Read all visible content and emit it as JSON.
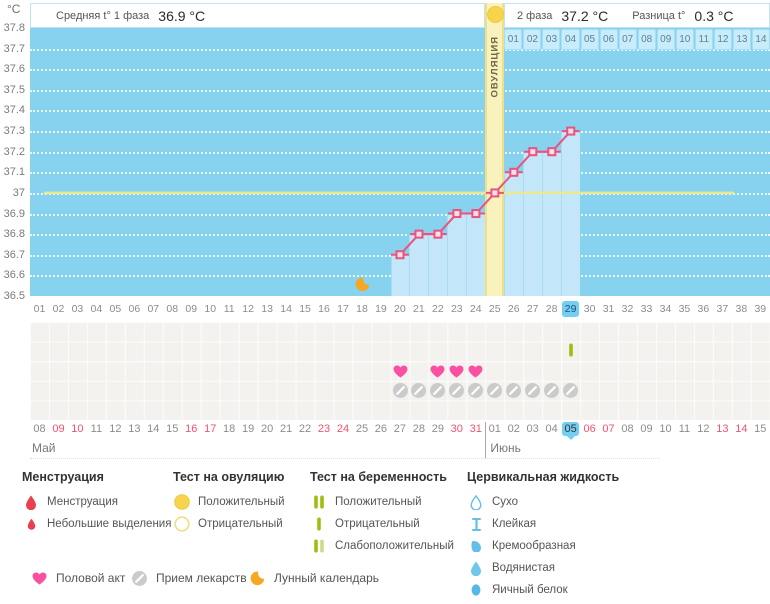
{
  "header": {
    "unit": "°C",
    "phase1_label": "Средняя t° 1 фаза",
    "phase1_value": "36.9 °C",
    "phase2_label": "2 фаза",
    "phase2_value": "37.2 °C",
    "diff_label": "Разница t°",
    "diff_value": "0.3 °C"
  },
  "chart_data": {
    "type": "line",
    "ylabel": "°C",
    "ylim": [
      36.5,
      37.8
    ],
    "yticks": [
      "37.8",
      "37.7",
      "37.6",
      "37.5",
      "37.4",
      "37.3",
      "37.2",
      "37.1",
      "37",
      "36.9",
      "36.8",
      "36.7",
      "36.6",
      "36.5"
    ],
    "x_days": 39,
    "cycle_days": [
      "01",
      "02",
      "03",
      "04",
      "05",
      "06",
      "07",
      "08",
      "09",
      "10",
      "11",
      "12",
      "13",
      "14",
      "15",
      "16",
      "17",
      "18",
      "19",
      "20",
      "21",
      "22",
      "23",
      "24",
      "25",
      "26",
      "27",
      "28",
      "29",
      "30",
      "31",
      "32",
      "33",
      "34",
      "35",
      "36",
      "37",
      "38",
      "39"
    ],
    "series": [
      {
        "name": "температура",
        "points": [
          {
            "day": 20,
            "t": 36.7
          },
          {
            "day": 21,
            "t": 36.8
          },
          {
            "day": 22,
            "t": 36.8
          },
          {
            "day": 23,
            "t": 36.9
          },
          {
            "day": 24,
            "t": 36.9
          },
          {
            "day": 25,
            "t": 37.0
          },
          {
            "day": 26,
            "t": 37.1
          },
          {
            "day": 27,
            "t": 37.2
          },
          {
            "day": 28,
            "t": 37.2
          },
          {
            "day": 29,
            "t": 37.3
          }
        ]
      }
    ],
    "coverline": 37.0,
    "ovulation_day": 25,
    "ovulation_label": "ОВУЛЯЦИЯ",
    "current_cycle_day": 29,
    "phase2_cells": [
      "01",
      "02",
      "03",
      "04",
      "05",
      "06",
      "07",
      "08",
      "09",
      "10",
      "11",
      "12",
      "13",
      "14"
    ],
    "grid": "dotted-horizontal-white",
    "legend_position": "bottom"
  },
  "events": {
    "pregnancy_tests": [
      {
        "day": 29,
        "result": "Отрицательный"
      }
    ],
    "intercourse_days": [
      20,
      22,
      23,
      24
    ],
    "medication_days": [
      20,
      21,
      22,
      23,
      24,
      25,
      26,
      27,
      28,
      29
    ],
    "lunar_day": 18
  },
  "calendar": {
    "may_label": "Май",
    "june_label": "Июнь",
    "today_date": "05",
    "june_start_index": 24,
    "dates": [
      {
        "d": "08"
      },
      {
        "d": "09",
        "red": true
      },
      {
        "d": "10",
        "red": true
      },
      {
        "d": "11"
      },
      {
        "d": "12"
      },
      {
        "d": "13"
      },
      {
        "d": "14"
      },
      {
        "d": "15"
      },
      {
        "d": "16",
        "red": true
      },
      {
        "d": "17",
        "red": true
      },
      {
        "d": "18"
      },
      {
        "d": "19"
      },
      {
        "d": "20"
      },
      {
        "d": "21"
      },
      {
        "d": "22"
      },
      {
        "d": "23",
        "red": true
      },
      {
        "d": "24",
        "red": true
      },
      {
        "d": "25"
      },
      {
        "d": "26"
      },
      {
        "d": "27"
      },
      {
        "d": "28"
      },
      {
        "d": "29"
      },
      {
        "d": "30",
        "red": true
      },
      {
        "d": "31",
        "red": true
      },
      {
        "d": "01"
      },
      {
        "d": "02"
      },
      {
        "d": "03"
      },
      {
        "d": "04"
      },
      {
        "d": "05",
        "today": true
      },
      {
        "d": "06",
        "red": true
      },
      {
        "d": "07",
        "red": true
      },
      {
        "d": "08"
      },
      {
        "d": "09"
      },
      {
        "d": "10"
      },
      {
        "d": "11"
      },
      {
        "d": "12"
      },
      {
        "d": "13",
        "red": true
      },
      {
        "d": "14",
        "red": true
      },
      {
        "d": "15"
      }
    ]
  },
  "legend": {
    "columns": [
      {
        "id": "menstruation",
        "title": "Менструация",
        "items": [
          {
            "icon": "drop-big",
            "label": "Менструация"
          },
          {
            "icon": "drop-small",
            "label": "Небольшие выделения"
          }
        ]
      },
      {
        "id": "ovulation-test",
        "title": "Тест на овуляцию",
        "items": [
          {
            "icon": "circle-on",
            "label": "Положительный"
          },
          {
            "icon": "circle-off",
            "label": "Отрицательный"
          }
        ]
      },
      {
        "id": "pregnancy-test",
        "title": "Тест на беременность",
        "items": [
          {
            "icon": "bars-pos",
            "label": "Положительный"
          },
          {
            "icon": "bar-neg",
            "label": "Отрицательный"
          },
          {
            "icon": "bars-weak",
            "label": "Слабоположительный"
          }
        ]
      },
      {
        "id": "cervical-fluid",
        "title": "Цервикальная жидкость",
        "items": [
          {
            "icon": "fluid-dry",
            "label": "Сухо"
          },
          {
            "icon": "fluid-sticky",
            "label": "Клейкая"
          },
          {
            "icon": "fluid-creamy",
            "label": "Кремообразная"
          },
          {
            "icon": "fluid-watery",
            "label": "Водянистая"
          },
          {
            "icon": "fluid-eggwhite",
            "label": "Яичный белок"
          }
        ]
      }
    ],
    "footer": [
      {
        "icon": "heart",
        "label": "Половой акт"
      },
      {
        "icon": "pill",
        "label": "Прием лекарств"
      },
      {
        "icon": "moon",
        "label": "Лунный календарь"
      }
    ]
  },
  "colors": {
    "chart_bg": "#87d2ef",
    "bar": "#c3e7f8",
    "band": "#faf2bc",
    "band_edge": "#f0e085",
    "coverline": "#ede78f",
    "line": "#e9537d",
    "marker_fill": "#fbdfe9",
    "highlight": "#74cdf3",
    "red_date": "#f4526a",
    "green": "#9cbe11",
    "green_pale": "#cbdb8c",
    "heart": "#fb4fa2",
    "pill": "#cbcbcb",
    "moon": "#f7a823",
    "drop": "#e8404e",
    "ovulation_yellow": "#f8d44c",
    "cervical_blue": "#64bfe8"
  }
}
